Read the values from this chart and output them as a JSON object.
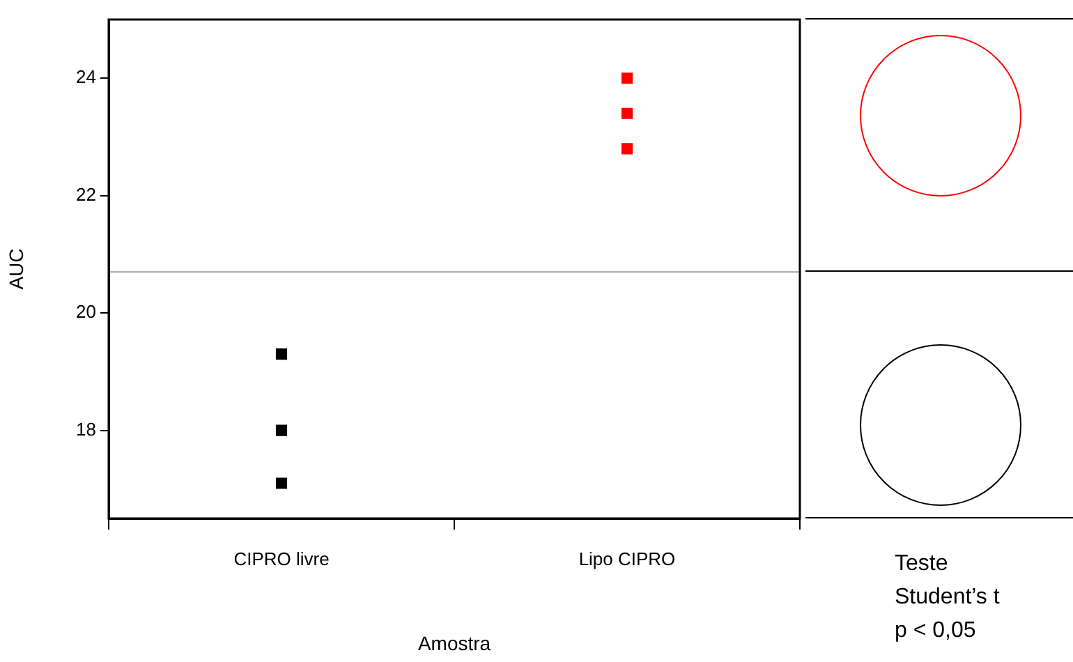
{
  "chart_data": {
    "type": "scatter",
    "xlabel": "Amostra",
    "ylabel": "AUC",
    "categories": [
      "CIPRO livre",
      "Lipo CIPRO"
    ],
    "series": [
      {
        "x": [
          "CIPRO livre",
          "CIPRO livre",
          "CIPRO livre"
        ],
        "values": [
          19.3,
          18.0,
          17.1
        ],
        "color": "#000000"
      },
      {
        "x": [
          "Lipo CIPRO",
          "Lipo CIPRO",
          "Lipo CIPRO"
        ],
        "values": [
          24.0,
          23.4,
          22.8
        ],
        "color": "#ff0000"
      }
    ],
    "ylim": [
      16.5,
      25
    ],
    "yticks": [
      18,
      20,
      22,
      24
    ],
    "grid": false,
    "legend": false,
    "marker": "square",
    "ref_lines": [
      {
        "axis": "y",
        "value": 20.7,
        "color": "#a0a0a0"
      }
    ],
    "annotations": [
      "Teste",
      "Student’s t",
      "p < 0,05"
    ]
  }
}
